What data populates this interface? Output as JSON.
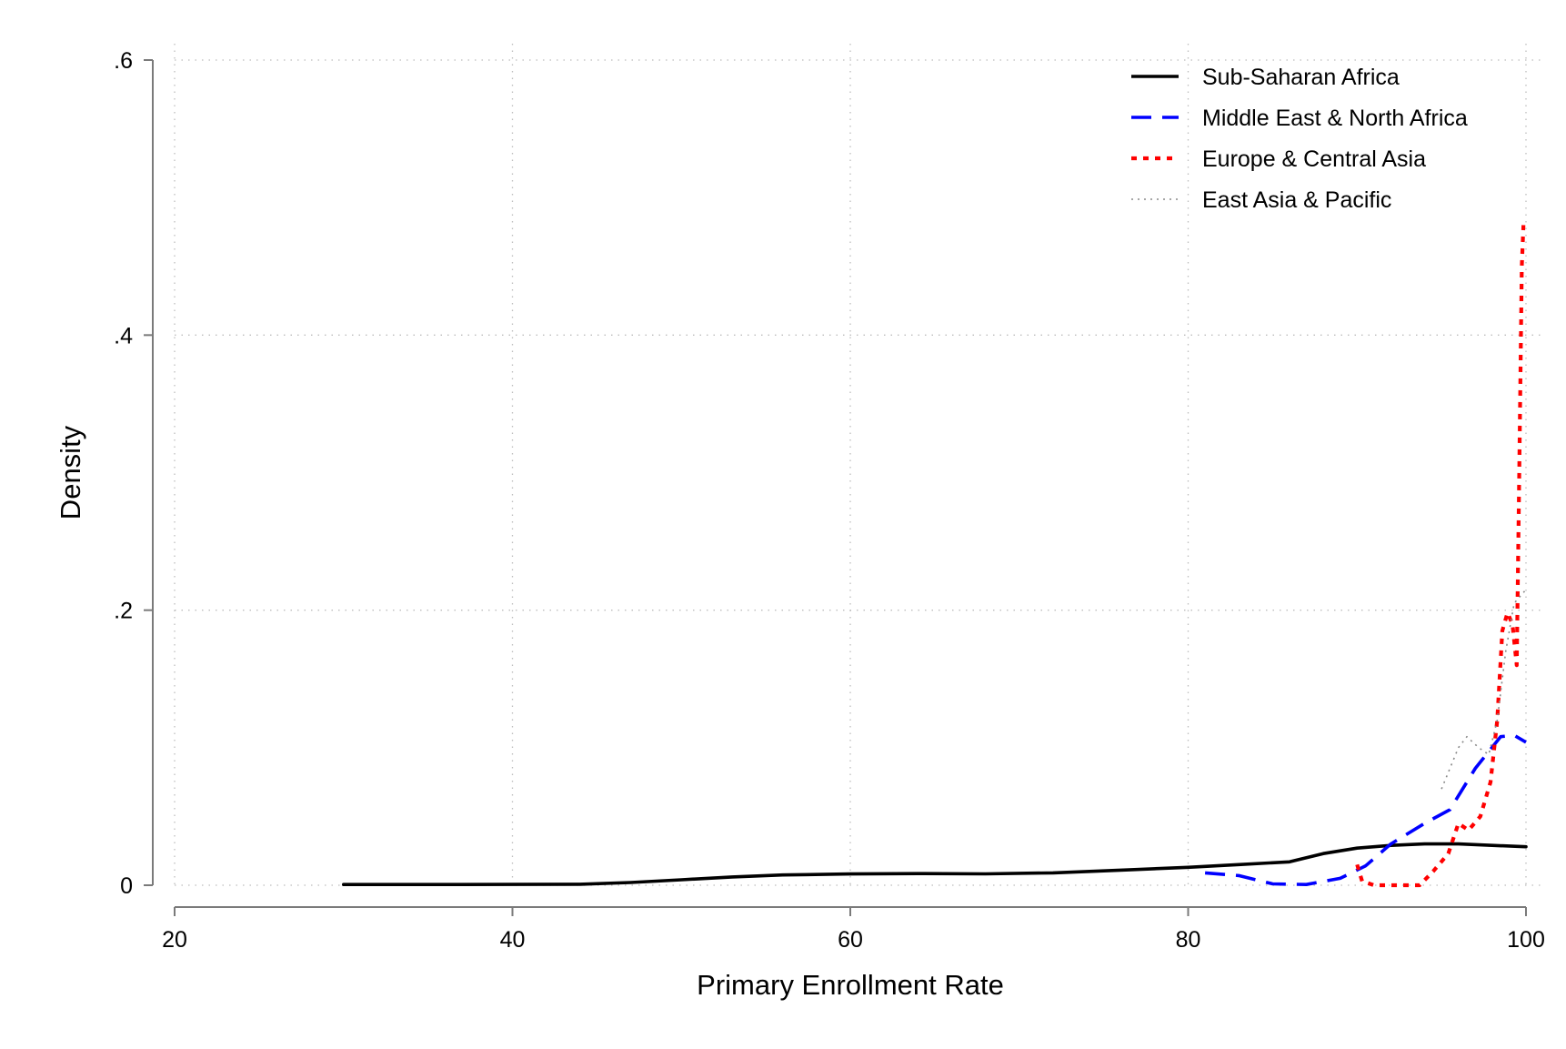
{
  "chart_data": {
    "type": "line",
    "title": "",
    "xlabel": "Primary Enrollment Rate",
    "ylabel": "Density",
    "xlim": [
      20,
      100
    ],
    "ylim": [
      0,
      0.6
    ],
    "x_ticks": [
      20,
      40,
      60,
      80,
      100
    ],
    "x_tick_labels": [
      "20",
      "40",
      "60",
      "80",
      "100"
    ],
    "y_ticks": [
      0,
      0.2,
      0.4,
      0.6
    ],
    "y_tick_labels": [
      "0",
      ".2",
      ".4",
      ".6"
    ],
    "grid": true,
    "legend_position": "top-right",
    "series": [
      {
        "name": "Sub-Saharan Africa",
        "color": "#000000",
        "style": "solid",
        "points": [
          [
            30,
            0.0005
          ],
          [
            35,
            0.0005
          ],
          [
            40,
            0.0006
          ],
          [
            44,
            0.0007
          ],
          [
            47,
            0.002
          ],
          [
            50,
            0.004
          ],
          [
            53,
            0.006
          ],
          [
            56,
            0.0075
          ],
          [
            60,
            0.0082
          ],
          [
            64,
            0.0085
          ],
          [
            68,
            0.0083
          ],
          [
            72,
            0.009
          ],
          [
            76,
            0.011
          ],
          [
            80,
            0.013
          ],
          [
            83,
            0.015
          ],
          [
            86,
            0.017
          ],
          [
            88,
            0.023
          ],
          [
            90,
            0.027
          ],
          [
            92,
            0.029
          ],
          [
            94,
            0.03
          ],
          [
            96,
            0.03
          ],
          [
            98,
            0.029
          ],
          [
            100,
            0.028
          ]
        ]
      },
      {
        "name": "Middle East & North Africa",
        "color": "#0000ff",
        "style": "dashed",
        "points": [
          [
            81,
            0.009
          ],
          [
            83,
            0.007
          ],
          [
            85,
            0.001
          ],
          [
            87,
            0.0005
          ],
          [
            89,
            0.005
          ],
          [
            90.5,
            0.014
          ],
          [
            92,
            0.03
          ],
          [
            94,
            0.045
          ],
          [
            95.5,
            0.055
          ],
          [
            97,
            0.085
          ],
          [
            98.5,
            0.108
          ],
          [
            99.3,
            0.109
          ],
          [
            100,
            0.104
          ]
        ]
      },
      {
        "name": "Europe & Central Asia",
        "color": "#ff0000",
        "style": "dotted",
        "points": [
          [
            90,
            0.015
          ],
          [
            90.3,
            0.003
          ],
          [
            91,
            0.0
          ],
          [
            92,
            0.0
          ],
          [
            93,
            0.0
          ],
          [
            93.7,
            0.0
          ],
          [
            94.5,
            0.01
          ],
          [
            95.4,
            0.023
          ],
          [
            96,
            0.045
          ],
          [
            96.6,
            0.04
          ],
          [
            97.3,
            0.05
          ],
          [
            97.9,
            0.075
          ],
          [
            98.3,
            0.12
          ],
          [
            98.6,
            0.185
          ],
          [
            98.9,
            0.198
          ],
          [
            99.2,
            0.19
          ],
          [
            99.45,
            0.16
          ],
          [
            99.6,
            0.3
          ],
          [
            99.75,
            0.45
          ],
          [
            99.85,
            0.48
          ]
        ]
      },
      {
        "name": "East Asia & Pacific",
        "color": "#888888",
        "style": "fine-dotted",
        "points": [
          [
            95,
            0.07
          ],
          [
            95.5,
            0.085
          ],
          [
            96,
            0.1
          ],
          [
            96.5,
            0.108
          ],
          [
            97.2,
            0.1
          ],
          [
            97.8,
            0.095
          ],
          [
            98.3,
            0.12
          ],
          [
            98.8,
            0.17
          ],
          [
            99.3,
            0.205
          ],
          [
            100,
            0.215
          ]
        ]
      }
    ]
  }
}
